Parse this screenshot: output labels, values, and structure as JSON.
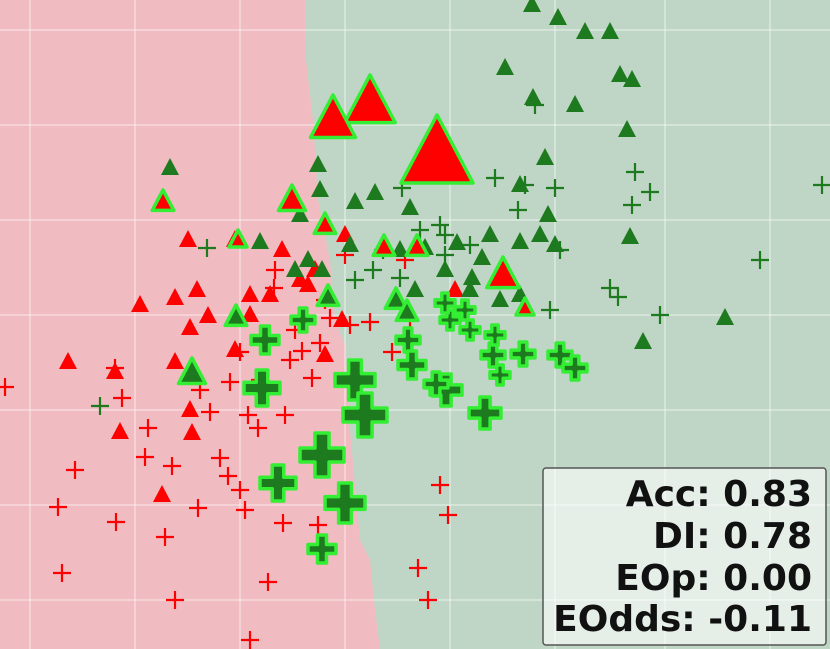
{
  "chart_data": {
    "type": "scatter",
    "xlim": [
      0,
      830
    ],
    "ylim": [
      649,
      0
    ],
    "xticks": [
      30,
      135,
      240,
      345,
      450,
      555,
      665,
      770
    ],
    "yticks": [
      30,
      125,
      220,
      315,
      410,
      505,
      600
    ],
    "grid": true,
    "annotations": [
      "Acc: 0.83",
      "DI: 0.78",
      "EOp: 0.00",
      "EOdds: -0.11"
    ],
    "series": [
      {
        "marker": "plus",
        "color": "#ff0000",
        "marker_size": 9,
        "x": [
          5,
          115,
          122,
          148,
          75,
          58,
          116,
          62,
          145,
          172,
          198,
          165,
          175,
          220,
          228,
          240,
          245,
          210,
          230,
          248,
          258,
          285,
          240,
          275,
          274,
          302,
          312,
          320,
          330,
          350,
          345,
          370,
          392,
          250,
          268,
          283,
          318,
          410,
          448,
          418,
          428,
          405,
          440,
          290,
          295,
          325,
          260,
          200
        ],
        "y": [
          387,
          368,
          398,
          428,
          470,
          507,
          522,
          573,
          457,
          466,
          508,
          537,
          600,
          458,
          476,
          490,
          510,
          412,
          382,
          415,
          428,
          415,
          352,
          270,
          288,
          351,
          378,
          343,
          318,
          325,
          255,
          322,
          352,
          640,
          582,
          523,
          525,
          320,
          515,
          568,
          600,
          260,
          485,
          360,
          330,
          300,
          380,
          390
        ]
      },
      {
        "marker": "triangle",
        "color": "#ff0000",
        "marker_size": 10,
        "x": [
          68,
          115,
          120,
          162,
          140,
          175,
          197,
          188,
          208,
          190,
          235,
          250,
          270,
          282,
          300,
          315,
          325,
          342,
          308,
          345,
          190,
          192,
          175,
          455,
          235,
          250
        ],
        "y": [
          362,
          372,
          432,
          495,
          305,
          298,
          290,
          240,
          316,
          328,
          350,
          315,
          295,
          250,
          280,
          270,
          355,
          320,
          285,
          235,
          410,
          433,
          362,
          290,
          240,
          295
        ]
      },
      {
        "marker": "plus",
        "color": "#1e7a1e",
        "marker_size": 9,
        "x": [
          100,
          207,
          373,
          400,
          402,
          440,
          420,
          445,
          495,
          525,
          555,
          518,
          560,
          635,
          650,
          632,
          610,
          618,
          760,
          822,
          660,
          550,
          470,
          445,
          535,
          383,
          355
        ],
        "y": [
          406,
          248,
          270,
          278,
          188,
          225,
          230,
          255,
          178,
          185,
          188,
          210,
          250,
          172,
          192,
          205,
          288,
          297,
          260,
          185,
          315,
          310,
          245,
          235,
          105,
          250,
          280
        ]
      },
      {
        "marker": "triangle",
        "color": "#1e7a1e",
        "marker_size": 10,
        "x": [
          532,
          558,
          585,
          610,
          505,
          620,
          632,
          533,
          575,
          627,
          545,
          375,
          355,
          318,
          320,
          170,
          260,
          300,
          350,
          425,
          457,
          410,
          520,
          548,
          520,
          540,
          490,
          482,
          555,
          445,
          472,
          500,
          520,
          630,
          725,
          643,
          308,
          322,
          295,
          400,
          415,
          470
        ],
        "y": [
          5,
          18,
          32,
          32,
          68,
          75,
          80,
          98,
          105,
          130,
          158,
          193,
          202,
          165,
          190,
          168,
          242,
          215,
          245,
          248,
          243,
          208,
          185,
          215,
          242,
          235,
          235,
          258,
          245,
          270,
          278,
          300,
          295,
          237,
          318,
          342,
          260,
          270,
          270,
          250,
          290,
          290
        ]
      },
      {
        "marker": "triangle",
        "color": "#ff0000",
        "edgecolor": "#33ee33",
        "x": [
          437,
          370,
          333,
          163,
          325,
          384,
          417,
          503,
          525,
          238,
          292
        ],
        "y": [
          155,
          103,
          120,
          202,
          225,
          247,
          247,
          275,
          308,
          240,
          200
        ],
        "sizes": [
          40,
          28,
          25,
          12,
          12,
          12,
          12,
          18,
          10,
          10,
          15
        ]
      },
      {
        "marker": "triangle",
        "color": "#1e7a1e",
        "edgecolor": "#33ee33",
        "x": [
          192,
          236,
          328,
          396,
          407
        ],
        "y": [
          373,
          317,
          297,
          300,
          312
        ],
        "sizes": [
          15,
          12,
          12,
          12,
          12
        ]
      },
      {
        "marker": "plus",
        "color": "#1e7a1e",
        "edgecolor": "#33ee33",
        "x": [
          265,
          303,
          262,
          355,
          365,
          322,
          278,
          345,
          322,
          408,
          412,
          446,
          436,
          485,
          493,
          523,
          560,
          575,
          450,
          470,
          495,
          500,
          445,
          465
        ],
        "y": [
          340,
          320,
          388,
          380,
          415,
          455,
          483,
          503,
          549,
          340,
          365,
          390,
          384,
          413,
          355,
          354,
          355,
          368,
          320,
          330,
          335,
          375,
          303,
          310
        ],
        "sizes": [
          14,
          12,
          18,
          20,
          22,
          22,
          18,
          20,
          14,
          12,
          14,
          16,
          12,
          16,
          12,
          12,
          12,
          12,
          10,
          10,
          10,
          10,
          10,
          10
        ]
      }
    ]
  }
}
